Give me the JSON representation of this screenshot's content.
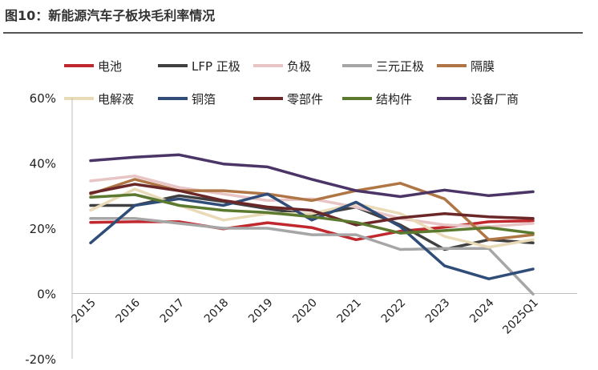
{
  "figure_title": "图10：新能源汽车子板块毛利率情况",
  "chart_data": {
    "type": "line",
    "x": [
      "2015",
      "2016",
      "2017",
      "2018",
      "2019",
      "2020",
      "2021",
      "2022",
      "2023",
      "2024",
      "2025Q1"
    ],
    "y_ticks": [
      "60%",
      "40%",
      "20%",
      "0%",
      "-20%"
    ],
    "ylim": [
      -20,
      60
    ],
    "grid": false,
    "legend_position": "top",
    "series": [
      {
        "name": "电池",
        "color": "#C0282D",
        "values": [
          21.8,
          22.0,
          22.0,
          19.8,
          21.7,
          20.2,
          16.5,
          19.1,
          20.3,
          22.0,
          22.3
        ]
      },
      {
        "name": "LFP 正极",
        "color": "#404040",
        "values": [
          27.0,
          27.0,
          30.0,
          28.2,
          26.0,
          24.0,
          26.5,
          21.0,
          13.5,
          16.5,
          15.5
        ]
      },
      {
        "name": "负极",
        "color": "#E8C4C4",
        "values": [
          34.5,
          36.0,
          32.5,
          30.5,
          28.5,
          29.0,
          26.5,
          23.0,
          21.0,
          20.5,
          21.5
        ]
      },
      {
        "name": "三元正极",
        "color": "#A6A6A6",
        "values": [
          23.0,
          23.0,
          21.5,
          20.0,
          20.0,
          18.0,
          18.0,
          13.5,
          13.8,
          13.8,
          -0.2
        ]
      },
      {
        "name": "隔膜",
        "color": "#B07545",
        "values": [
          30.5,
          35.0,
          31.5,
          31.5,
          30.5,
          28.5,
          31.5,
          33.8,
          29.0,
          16.5,
          18.0
        ]
      },
      {
        "name": "电解液",
        "color": "#EADBB8",
        "values": [
          25.5,
          32.0,
          27.0,
          22.5,
          24.5,
          24.5,
          27.5,
          24.5,
          17.5,
          14.2,
          16.5
        ]
      },
      {
        "name": "铜箔",
        "color": "#2F4D78",
        "values": [
          15.5,
          27.0,
          29.0,
          27.0,
          30.5,
          22.5,
          28.0,
          20.5,
          8.5,
          4.5,
          7.5
        ]
      },
      {
        "name": "零部件",
        "color": "#6B2727",
        "values": [
          30.8,
          33.5,
          31.5,
          28.5,
          26.5,
          25.5,
          21.0,
          23.2,
          24.5,
          23.5,
          23.0
        ]
      },
      {
        "name": "结构件",
        "color": "#5B7A2F",
        "values": [
          29.5,
          30.3,
          27.0,
          25.5,
          24.8,
          23.5,
          21.8,
          18.5,
          19.3,
          20.2,
          18.5
        ]
      },
      {
        "name": "设备厂商",
        "color": "#4A3566",
        "values": [
          40.7,
          41.8,
          42.5,
          39.7,
          38.8,
          35.0,
          31.5,
          29.7,
          31.7,
          30.0,
          31.2
        ]
      }
    ]
  }
}
